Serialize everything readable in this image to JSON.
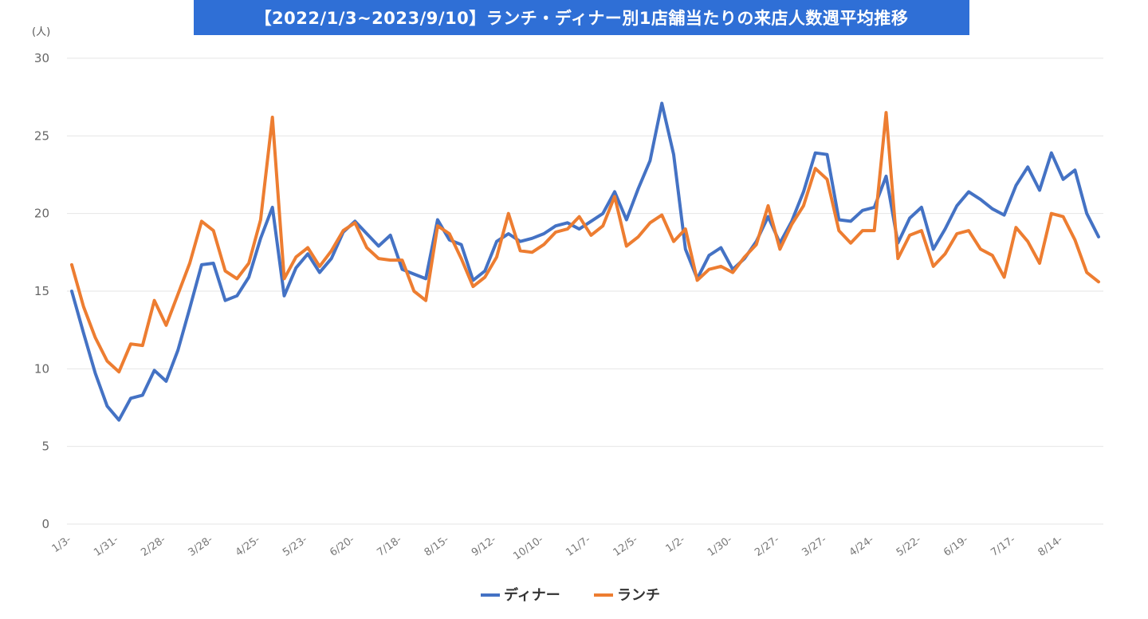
{
  "title": "【2022/1/3~2023/9/10】ランチ・ディナー別1店舗当たりの来店人数週平均推移",
  "colors": {
    "title_bg": "#2f6fd6",
    "dinner": "#4472c4",
    "lunch": "#ed7d31",
    "grid": "#e6e6e6"
  },
  "chart_data": {
    "type": "line",
    "unit_label": "(人)",
    "ylim": [
      0,
      30
    ],
    "yticks": [
      "0",
      "5",
      "10",
      "15",
      "20",
      "25",
      "30"
    ],
    "grid": true,
    "legend_position": "bottom",
    "x_tick_labels": [
      "1/3-",
      "1/31-",
      "2/28-",
      "3/28-",
      "4/25-",
      "5/23-",
      "6/20-",
      "7/18-",
      "8/15-",
      "9/12-",
      "10/10-",
      "11/7-",
      "12/5-",
      "1/2-",
      "1/30-",
      "2/27-",
      "3/27-",
      "4/24-",
      "5/22-",
      "6/19-",
      "7/17-",
      "8/14-"
    ],
    "series": [
      {
        "name": "ディナー",
        "values": [
          15.0,
          12.3,
          9.7,
          7.6,
          6.7,
          8.1,
          8.3,
          9.9,
          9.2,
          11.2,
          13.9,
          16.7,
          16.8,
          14.4,
          14.7,
          15.9,
          18.4,
          20.4,
          14.7,
          16.5,
          17.4,
          16.2,
          17.1,
          18.8,
          19.5,
          18.7,
          17.9,
          18.6,
          16.4,
          16.1,
          15.8,
          19.6,
          18.3,
          18.0,
          15.7,
          16.3,
          18.2,
          18.7,
          18.2,
          18.4,
          18.7,
          19.2,
          19.4,
          19.0,
          19.5,
          20.0,
          21.4,
          19.6,
          21.6,
          23.4,
          27.1,
          23.8,
          17.7,
          15.8,
          17.3,
          17.8,
          16.4,
          17.1,
          18.2,
          19.8,
          18.1,
          19.5,
          21.4,
          23.9,
          23.8,
          19.6,
          19.5,
          20.2,
          20.4,
          22.4,
          18.1,
          19.7,
          20.4,
          17.7,
          19.0,
          20.5,
          21.4,
          20.9,
          20.3,
          19.9,
          21.8,
          23.0,
          21.5,
          23.9,
          22.2,
          22.8,
          20.0,
          18.5
        ],
        "color": "#4472c4"
      },
      {
        "name": "ランチ",
        "values": [
          16.7,
          14.0,
          12.0,
          10.5,
          9.8,
          11.6,
          11.5,
          14.4,
          12.8,
          14.8,
          16.8,
          19.5,
          18.9,
          16.3,
          15.8,
          16.8,
          19.6,
          26.2,
          15.8,
          17.2,
          17.8,
          16.6,
          17.6,
          18.9,
          19.4,
          17.8,
          17.1,
          17.0,
          17.0,
          15.0,
          14.4,
          19.2,
          18.7,
          17.1,
          15.3,
          15.9,
          17.2,
          20.0,
          17.6,
          17.5,
          18.0,
          18.8,
          19.0,
          19.8,
          18.6,
          19.2,
          21.1,
          17.9,
          18.5,
          19.4,
          19.9,
          18.2,
          19.0,
          15.7,
          16.4,
          16.6,
          16.2,
          17.2,
          18.0,
          20.5,
          17.7,
          19.3,
          20.5,
          22.9,
          22.2,
          18.9,
          18.1,
          18.9,
          18.9,
          26.5,
          17.1,
          18.6,
          18.9,
          16.6,
          17.4,
          18.7,
          18.9,
          17.7,
          17.3,
          15.9,
          19.1,
          18.2,
          16.8,
          20.0,
          19.8,
          18.3,
          16.2,
          15.6
        ],
        "color": "#ed7d31"
      }
    ]
  }
}
